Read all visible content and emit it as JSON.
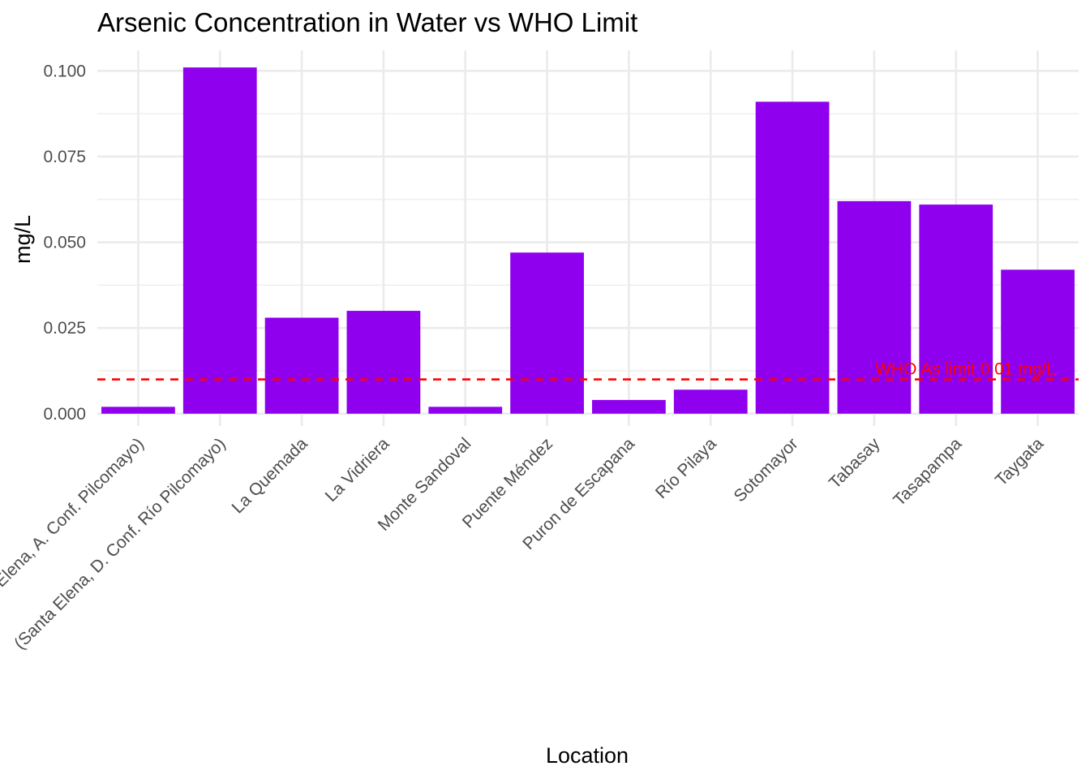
{
  "chart_data": {
    "type": "bar",
    "title": "Arsenic Concentration in Water vs WHO Limit",
    "xlabel": "Location",
    "ylabel": "mg/L",
    "categories": [
      "Santa Elena, A. Conf. Pilcomayo)",
      "(Santa Elena, D. Conf. Río Pilcomayo)",
      "La Quemada",
      "La Vidriera",
      "Monte Sandoval",
      "Puente Méndez",
      "Puron de Escapana",
      "Río Pilaya",
      "Sotomayor",
      "Tabasay",
      "Tasapampa",
      "Taygata"
    ],
    "values": [
      0.002,
      0.101,
      0.028,
      0.03,
      0.002,
      0.047,
      0.004,
      0.007,
      0.091,
      0.062,
      0.061,
      0.042
    ],
    "ylim": [
      -0.0036,
      0.106
    ],
    "yticks": [
      0.0,
      0.025,
      0.05,
      0.075,
      0.1
    ],
    "ytick_labels": [
      "0.000",
      "0.025",
      "0.050",
      "0.075",
      "0.100"
    ],
    "grid": true,
    "legend": "none",
    "bar_color": "#8f00ee",
    "reference_line": {
      "value": 0.01,
      "label": "WHO As limit 0.01 mg/L",
      "color": "#ff0000",
      "style": "dashed"
    }
  }
}
